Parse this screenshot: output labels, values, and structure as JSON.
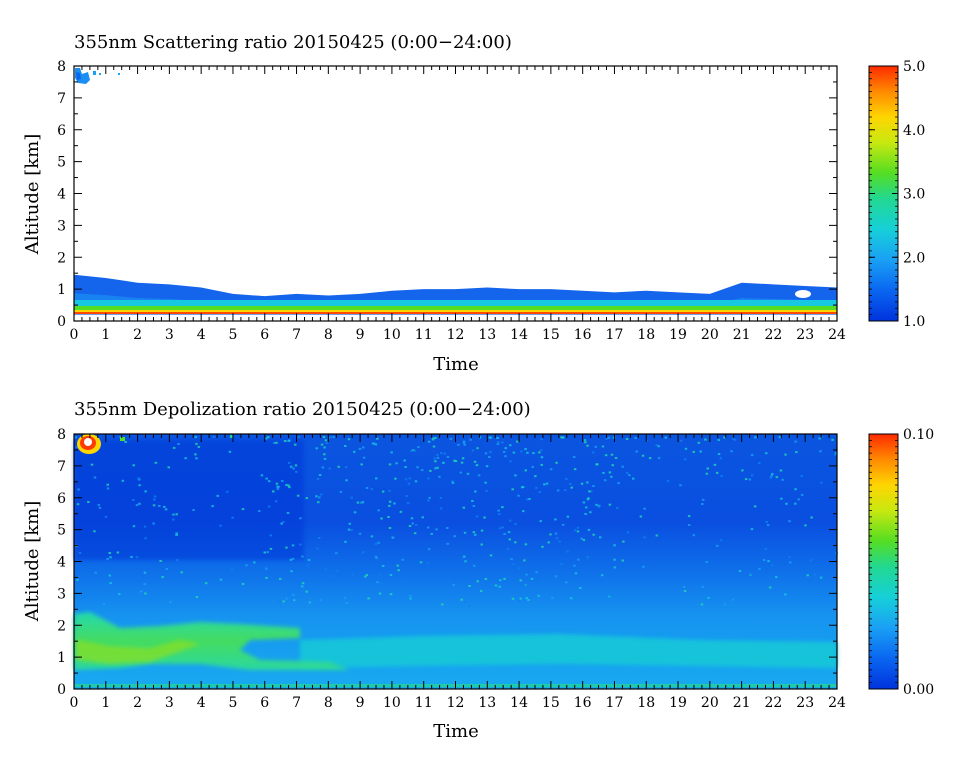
{
  "chart_data": [
    {
      "type": "heatmap",
      "title": "355nm Scattering ratio  20150425 (0:00−24:00)",
      "xlabel": "Time",
      "ylabel": "Altitude [km]",
      "xlim": [
        0,
        24
      ],
      "ylim": [
        0,
        8
      ],
      "x_ticks": [
        "0",
        "1",
        "2",
        "3",
        "4",
        "5",
        "6",
        "7",
        "8",
        "9",
        "10",
        "11",
        "12",
        "13",
        "14",
        "15",
        "16",
        "17",
        "18",
        "19",
        "20",
        "21",
        "22",
        "23",
        "24"
      ],
      "y_ticks": [
        "0",
        "1",
        "2",
        "3",
        "4",
        "5",
        "6",
        "7",
        "8"
      ],
      "colorbar": {
        "min": 1.0,
        "max": 5.0,
        "ticks": [
          "1.0",
          "2.0",
          "3.0",
          "4.0",
          "5.0"
        ]
      },
      "features": {
        "boundary_layer_top_km": [
          [
            0,
            1.45
          ],
          [
            1,
            1.35
          ],
          [
            2,
            1.2
          ],
          [
            3,
            1.15
          ],
          [
            4,
            1.05
          ],
          [
            5,
            0.85
          ],
          [
            6,
            0.78
          ],
          [
            7,
            0.85
          ],
          [
            8,
            0.8
          ],
          [
            9,
            0.85
          ],
          [
            10,
            0.95
          ],
          [
            11,
            1.0
          ],
          [
            12,
            1.0
          ],
          [
            13,
            1.05
          ],
          [
            14,
            1.0
          ],
          [
            15,
            1.0
          ],
          [
            16,
            0.95
          ],
          [
            17,
            0.9
          ],
          [
            18,
            0.95
          ],
          [
            19,
            0.9
          ],
          [
            20,
            0.85
          ],
          [
            21,
            1.2
          ],
          [
            22,
            1.15
          ],
          [
            23,
            1.1
          ],
          [
            24,
            1.05
          ]
        ],
        "near_surface_layer_km": [
          0.2,
          0.45
        ],
        "high_cloud": {
          "time": [
            0,
            1.5
          ],
          "alt_km": [
            7.3,
            8.0
          ]
        }
      }
    },
    {
      "type": "heatmap",
      "title": "355nm Depolization ratio  20150425 (0:00−24:00)",
      "xlabel": "Time",
      "ylabel": "Altitude [km]",
      "xlim": [
        0,
        24
      ],
      "ylim": [
        0,
        8
      ],
      "x_ticks": [
        "0",
        "1",
        "2",
        "3",
        "4",
        "5",
        "6",
        "7",
        "8",
        "9",
        "10",
        "11",
        "12",
        "13",
        "14",
        "15",
        "16",
        "17",
        "18",
        "19",
        "20",
        "21",
        "22",
        "23",
        "24"
      ],
      "y_ticks": [
        "0",
        "1",
        "2",
        "3",
        "4",
        "5",
        "6",
        "7",
        "8"
      ],
      "colorbar": {
        "min": 0.0,
        "max": 0.1,
        "ticks": [
          "0.00",
          "0.10"
        ]
      },
      "features": {
        "aerosol_layer": {
          "time": [
            0,
            7
          ],
          "alt_km": [
            0.4,
            2.3
          ],
          "peak_ratio": 0.05
        },
        "high_cloud": {
          "time": [
            0,
            1.5
          ],
          "alt_km": [
            7.2,
            8.0
          ],
          "peak_ratio": 0.1
        }
      }
    }
  ],
  "colors": {
    "scale": [
      "#0033dd",
      "#0a66f0",
      "#1aa0f5",
      "#16d0d8",
      "#22d890",
      "#55dd22",
      "#c8e810",
      "#ffd500",
      "#ff8a00",
      "#ff2a00"
    ]
  }
}
